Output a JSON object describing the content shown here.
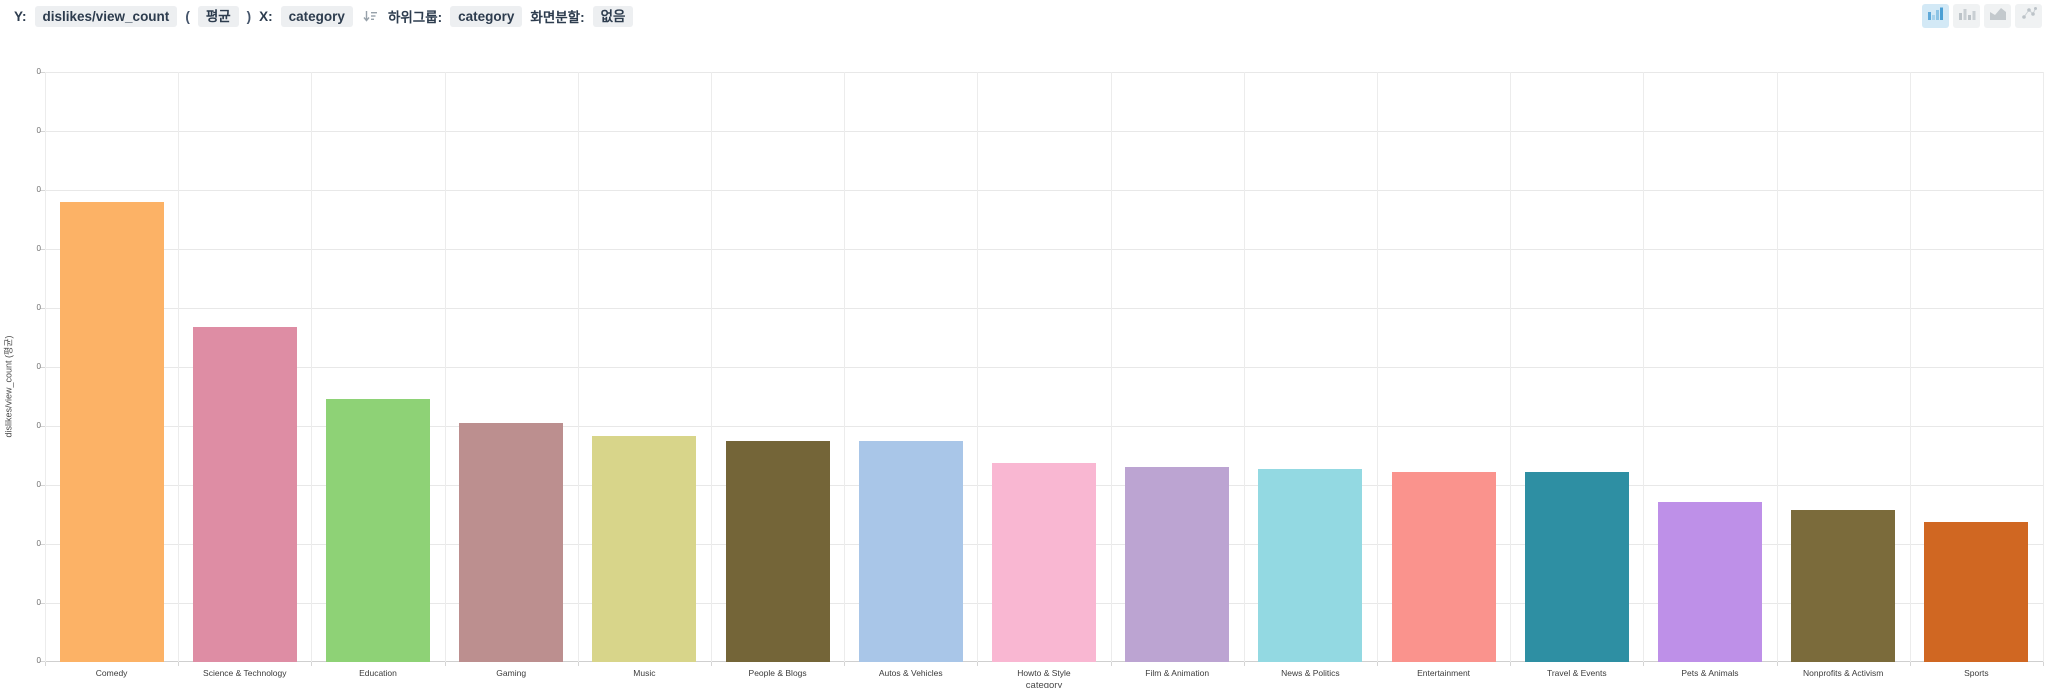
{
  "toolbar": {
    "y_label": "Y:",
    "y_field": "dislikes/view_count",
    "paren_open": "(",
    "aggregation": "평균",
    "paren_close": ")",
    "x_label": "X:",
    "x_field": "category",
    "sort_icon": "sort-descending-icon",
    "subgroup_label": "하위그룹:",
    "subgroup_field": "category",
    "split_label": "화면분할:",
    "split_value": "없음",
    "chart_type_buttons": [
      {
        "icon": "bar-chart-icon",
        "selected": true
      },
      {
        "icon": "column-chart-icon",
        "selected": false
      },
      {
        "icon": "area-chart-icon",
        "selected": false
      },
      {
        "icon": "scatter-chart-icon",
        "selected": false
      }
    ],
    "selected_button_bg": "#d3e9f6",
    "accent_color": "#4a9fd4"
  },
  "chart_data": {
    "type": "bar",
    "title": "",
    "xlabel": "category",
    "ylabel": "dislikes/view_count (평균)",
    "categories": [
      "Comedy",
      "Science & Technology",
      "Education",
      "Gaming",
      "Music",
      "People & Blogs",
      "Autos & Vehicles",
      "Howto & Style",
      "Film & Animation",
      "News & Politics",
      "Entertainment",
      "Travel & Events",
      "Pets & Animals",
      "Nonprofits & Activism",
      "Sports"
    ],
    "values": [
      7.8,
      5.68,
      4.46,
      4.05,
      3.83,
      3.75,
      3.75,
      3.37,
      3.31,
      3.27,
      3.22,
      3.22,
      2.71,
      2.58,
      2.37
    ],
    "bar_colors": [
      "#fcb266",
      "#de8da4",
      "#8ed276",
      "#bc8f8f",
      "#d8d58a",
      "#746538",
      "#a9c6e8",
      "#f9b7d2",
      "#bca4d2",
      "#93d9e2",
      "#fa938d",
      "#2e8fa3",
      "#be90e8",
      "#7b6b3b",
      "#d06722"
    ],
    "ylim": [
      0,
      10
    ],
    "y_tick_count": 11,
    "y_tick_label_text": "0",
    "grid": true,
    "legend": "none",
    "value_note": "all y tick labels render as 0; values estimated in gridline units"
  }
}
